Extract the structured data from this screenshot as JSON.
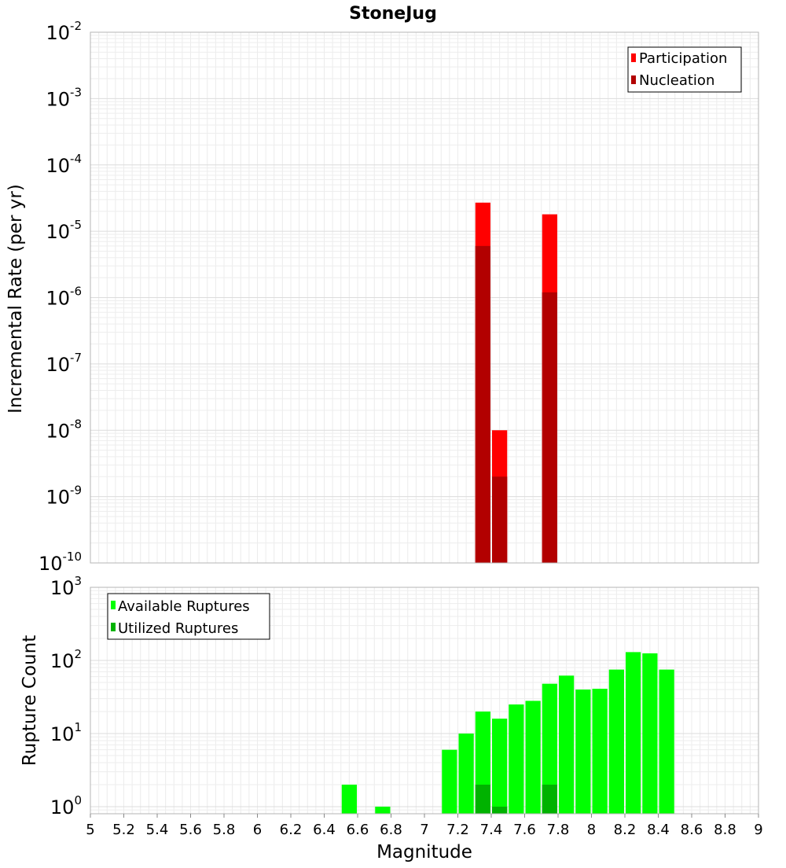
{
  "chart_data": [
    {
      "type": "bar",
      "title": "StoneJug",
      "xlabel": "",
      "ylabel": "Incremental Rate (per yr)",
      "x_range": [
        5,
        9
      ],
      "y_scale": "log",
      "ylim": [
        1e-10,
        0.01
      ],
      "y_tick_exponents": [
        "-2",
        "-3",
        "-4",
        "-5",
        "-6",
        "-7",
        "-8",
        "-9",
        "-10"
      ],
      "grid": true,
      "legend_position": "top-right",
      "bar_width": 0.1,
      "colors": {
        "participation": "#ff0000",
        "nucleation": "#b20000"
      },
      "series": [
        {
          "name": "Participation",
          "x": [
            7.35,
            7.45,
            7.75
          ],
          "values": [
            2.7e-05,
            1e-08,
            1.8e-05
          ]
        },
        {
          "name": "Nucleation",
          "x": [
            7.35,
            7.45,
            7.75
          ],
          "values": [
            6e-06,
            2e-09,
            1.2e-06
          ]
        }
      ]
    },
    {
      "type": "bar",
      "title": "",
      "xlabel": "Magnitude",
      "ylabel": "Rupture Count",
      "x_range": [
        5,
        9
      ],
      "x_ticks": [
        "5",
        "5.2",
        "5.4",
        "5.6",
        "5.8",
        "6",
        "6.2",
        "6.4",
        "6.6",
        "6.8",
        "7",
        "7.2",
        "7.4",
        "7.6",
        "7.8",
        "8",
        "8.2",
        "8.4",
        "8.6",
        "8.8",
        "9"
      ],
      "y_scale": "log",
      "ylim": [
        0.8,
        1000
      ],
      "y_tick_exponents": [
        "3",
        "2",
        "1",
        "0"
      ],
      "grid": true,
      "legend_position": "top-left",
      "bar_width": 0.1,
      "colors": {
        "available": "#00ff00",
        "utilized": "#00b200"
      },
      "series": [
        {
          "name": "Available Ruptures",
          "x": [
            6.55,
            6.75,
            7.15,
            7.25,
            7.35,
            7.45,
            7.55,
            7.65,
            7.75,
            7.85,
            7.95,
            8.05,
            8.15,
            8.25,
            8.35,
            8.45
          ],
          "values": [
            2,
            1,
            6,
            10,
            20,
            16,
            25,
            28,
            48,
            62,
            40,
            41,
            75,
            130,
            125,
            75
          ]
        },
        {
          "name": "Utilized Ruptures",
          "x": [
            7.35,
            7.45,
            7.75
          ],
          "values": [
            2,
            1,
            2
          ]
        }
      ]
    }
  ]
}
